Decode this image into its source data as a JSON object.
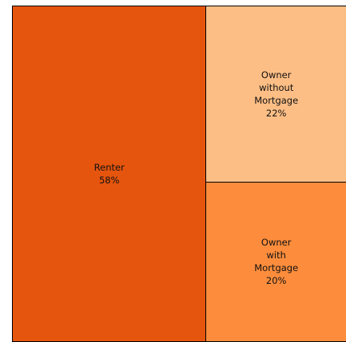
{
  "chart_data": {
    "type": "treemap",
    "categories": [
      "Renter",
      "Owner without Mortgage",
      "Owner with Mortgage"
    ],
    "values": [
      58,
      22,
      20
    ],
    "value_labels": [
      "58%",
      "22%",
      "20%"
    ],
    "colors": [
      "#e6550d",
      "#fdbe85",
      "#fd8d3c"
    ]
  }
}
